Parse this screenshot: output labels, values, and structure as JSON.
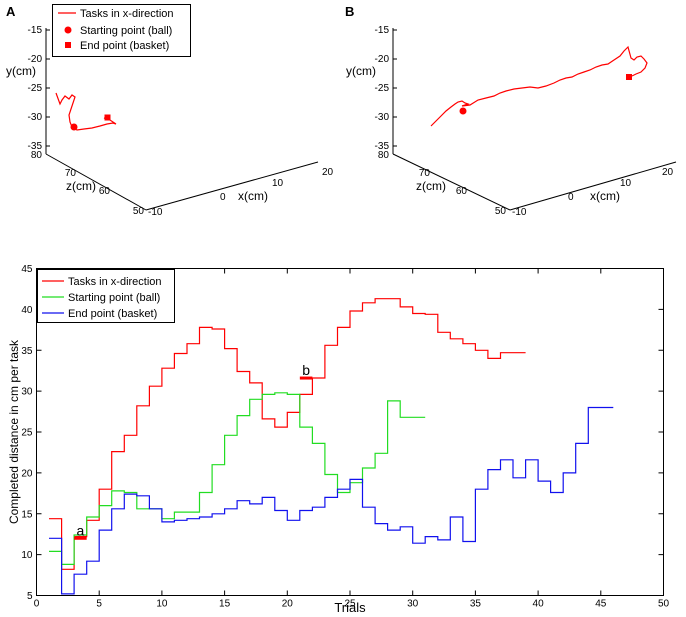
{
  "panelA": {
    "label": "A",
    "ylabel": "y(cm)",
    "zlabel": "z(cm)",
    "xlabel": "x(cm)",
    "y_ticks": [
      "-15",
      "-20",
      "-25",
      "-30",
      "-35"
    ],
    "z_ticks": [
      "80",
      "70",
      "60",
      "50"
    ],
    "x_ticks": [
      "-10",
      "0",
      "10",
      "20"
    ],
    "legend": [
      "Tasks in x-direction",
      "Starting point (ball)",
      "End point (basket)"
    ]
  },
  "panelB": {
    "label": "B",
    "ylabel": "y(cm)",
    "zlabel": "z(cm)",
    "xlabel": "x(cm)",
    "y_ticks": [
      "-15",
      "-20",
      "-25",
      "-30",
      "-35"
    ],
    "z_ticks": [
      "80",
      "70",
      "60",
      "50"
    ],
    "x_ticks": [
      "-10",
      "0",
      "10",
      "20"
    ]
  },
  "colors": {
    "red": "#ff0000",
    "green": "#22dd22",
    "blue": "#1111ee"
  },
  "chart_data": {
    "type": "line",
    "style": "step",
    "title": "",
    "xlabel": "Trials",
    "ylabel": "Completed distance in cm per task",
    "xlim": [
      0,
      50
    ],
    "ylim": [
      5,
      45
    ],
    "x_ticks": [
      0,
      5,
      10,
      15,
      20,
      25,
      30,
      35,
      40,
      45,
      50
    ],
    "y_ticks": [
      5,
      10,
      15,
      20,
      25,
      30,
      35,
      40,
      45
    ],
    "legend_position": "top-left",
    "series": [
      {
        "name": "Tasks in x-direction",
        "color": "#ff0000",
        "x": [
          1,
          2,
          3,
          4,
          5,
          6,
          7,
          8,
          9,
          10,
          11,
          12,
          13,
          14,
          15,
          16,
          17,
          18,
          19,
          20,
          21,
          22,
          23,
          24,
          25,
          26,
          27,
          28,
          29,
          30,
          31,
          32,
          33,
          34,
          35,
          36,
          37,
          38
        ],
        "values": [
          14.4,
          8.2,
          12.2,
          14.2,
          18.0,
          22.6,
          24.6,
          28.2,
          30.6,
          32.8,
          34.6,
          35.8,
          37.8,
          37.6,
          35.2,
          32.4,
          31.0,
          26.6,
          25.6,
          27.4,
          29.6,
          31.6,
          35.6,
          37.8,
          39.8,
          40.8,
          41.3,
          41.3,
          40.3,
          39.5,
          39.4,
          37.2,
          36.4,
          35.8,
          35.0,
          34.0,
          34.7,
          34.7
        ]
      },
      {
        "name": "Starting point (ball)",
        "color": "#22dd22",
        "x": [
          1,
          2,
          3,
          4,
          5,
          6,
          7,
          8,
          9,
          10,
          11,
          12,
          13,
          14,
          15,
          16,
          17,
          18,
          19,
          20,
          21,
          22,
          23,
          24,
          25,
          26,
          27,
          28,
          29,
          30
        ],
        "values": [
          10.4,
          8.8,
          12.4,
          14.6,
          16.0,
          17.8,
          17.6,
          15.6,
          15.6,
          14.4,
          15.2,
          15.2,
          17.6,
          21.0,
          24.6,
          27.0,
          29.0,
          29.6,
          29.8,
          29.6,
          25.6,
          23.6,
          19.8,
          17.6,
          18.8,
          20.6,
          22.4,
          28.8,
          26.8,
          26.8
        ]
      },
      {
        "name": "End point (basket)",
        "color": "#1111ee",
        "x": [
          1,
          2,
          3,
          4,
          5,
          6,
          7,
          8,
          9,
          10,
          11,
          12,
          13,
          14,
          15,
          16,
          17,
          18,
          19,
          20,
          21,
          22,
          23,
          24,
          25,
          26,
          27,
          28,
          29,
          30,
          31,
          32,
          33,
          34,
          35,
          36,
          37,
          38,
          39,
          40,
          41,
          42,
          43,
          44,
          45
        ],
        "values": [
          12.0,
          5.2,
          7.6,
          9.2,
          13.0,
          15.6,
          17.4,
          17.2,
          15.6,
          14.0,
          14.2,
          14.4,
          14.6,
          15.0,
          15.6,
          16.6,
          16.2,
          17.0,
          15.4,
          14.2,
          15.4,
          15.8,
          17.0,
          18.0,
          19.2,
          15.8,
          13.8,
          13.0,
          13.4,
          11.4,
          12.2,
          11.8,
          14.6,
          11.6,
          18.0,
          20.4,
          21.6,
          19.4,
          21.6,
          19.0,
          17.6,
          20.0,
          23.6,
          28.0,
          28.0
        ]
      }
    ],
    "annotations": [
      {
        "text": "a",
        "x": 3.5,
        "y": 12.0,
        "color": "#ff0000"
      },
      {
        "text": "b",
        "x": 21.5,
        "y": 31.6,
        "color": "#ff0000"
      }
    ]
  }
}
